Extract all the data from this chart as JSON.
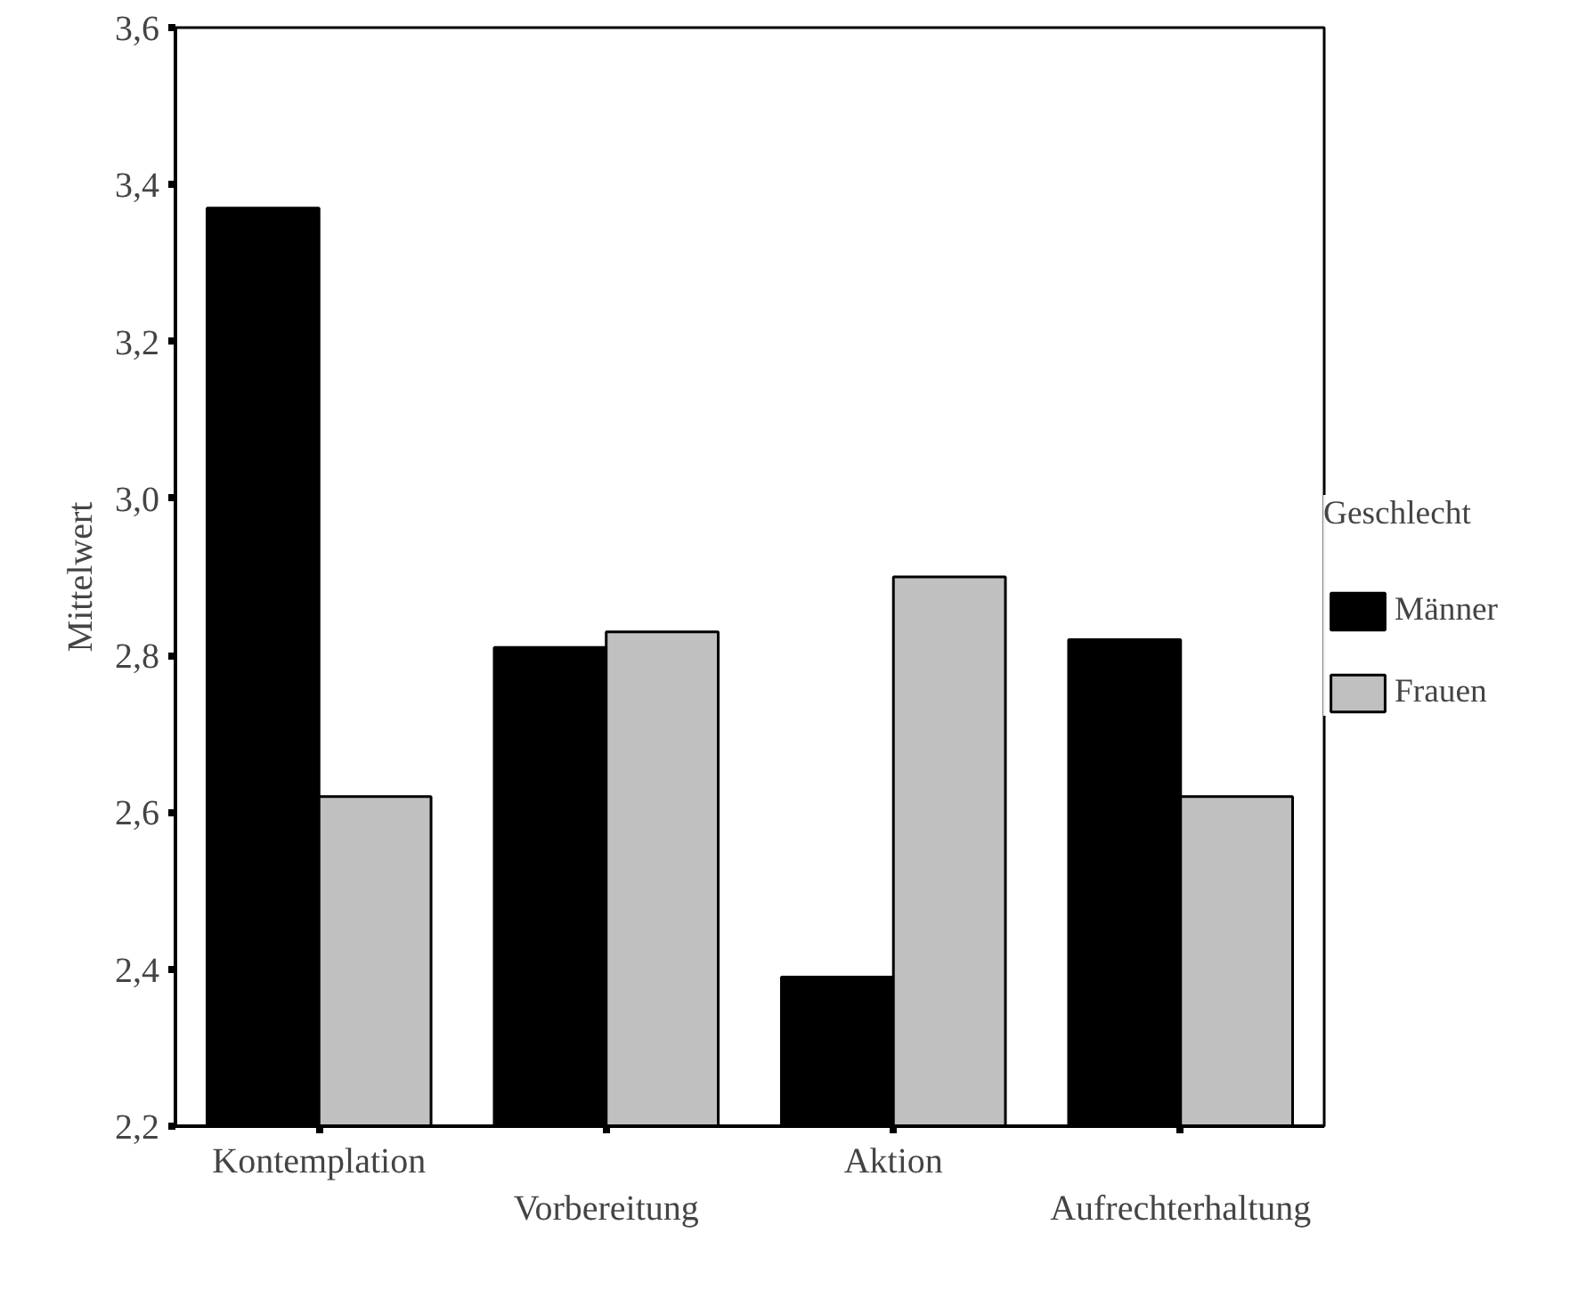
{
  "chart_data": {
    "type": "bar",
    "ylabel": "Mittelwert",
    "legend_title": "Geschlecht",
    "legend": "right",
    "categories": [
      "Kontemplation",
      "Vorbereitung",
      "Aktion",
      "Aufrechterhaltung"
    ],
    "series": [
      {
        "name": "Männer",
        "color": "#000000",
        "values": [
          3.37,
          2.81,
          2.39,
          2.82
        ]
      },
      {
        "name": "Frauen",
        "color": "#c0c0c0",
        "values": [
          2.62,
          2.83,
          2.9,
          2.62
        ]
      }
    ],
    "ylim": [
      2.2,
      3.6
    ],
    "yticks": [
      {
        "value": 2.2,
        "label": "2,2"
      },
      {
        "value": 2.4,
        "label": "2,4"
      },
      {
        "value": 2.6,
        "label": "2,6"
      },
      {
        "value": 2.8,
        "label": "2,8"
      },
      {
        "value": 3.0,
        "label": "3,0"
      },
      {
        "value": 3.2,
        "label": "3,2"
      },
      {
        "value": 3.4,
        "label": "3,4"
      },
      {
        "value": 3.6,
        "label": "3,6"
      }
    ],
    "grid": false
  }
}
